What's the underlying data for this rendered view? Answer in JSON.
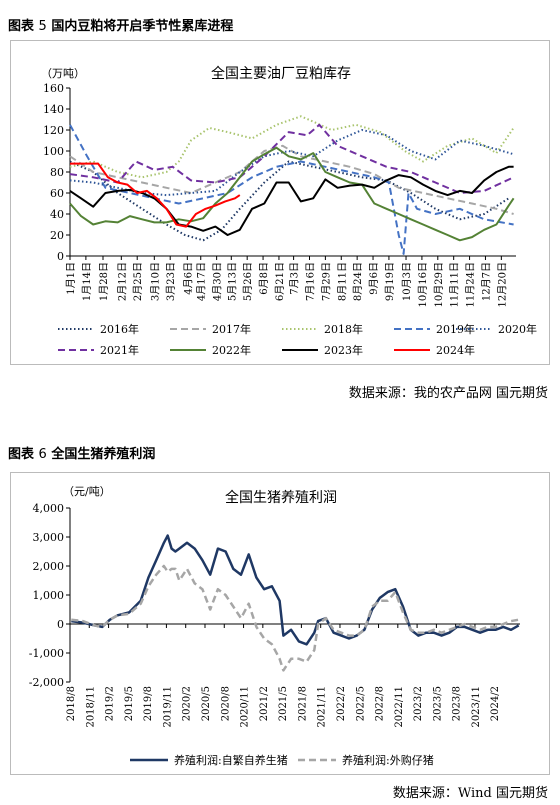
{
  "figure5": {
    "label": "图表",
    "number": "5",
    "caption": "国内豆粕将开启季节性累库进程",
    "source": "数据来源：我的农产品网 国元期货",
    "chart_data": {
      "type": "line",
      "title": "全国主要油厂豆粕库存",
      "ylabel": "（万吨）",
      "ylim": [
        0,
        160
      ],
      "yticks": [
        0,
        20,
        40,
        60,
        80,
        100,
        120,
        140,
        160
      ],
      "xlim": [
        1,
        366
      ],
      "xticks": [
        {
          "day": 1,
          "label": "1月1日"
        },
        {
          "day": 14,
          "label": "1月14日"
        },
        {
          "day": 28,
          "label": "1月28日"
        },
        {
          "day": 43,
          "label": "2月12日"
        },
        {
          "day": 56,
          "label": "2月25日"
        },
        {
          "day": 70,
          "label": "3月10日"
        },
        {
          "day": 83,
          "label": "3月23日"
        },
        {
          "day": 97,
          "label": "4月6日"
        },
        {
          "day": 108,
          "label": "4月17日"
        },
        {
          "day": 121,
          "label": "4月30日"
        },
        {
          "day": 133,
          "label": "5月13日"
        },
        {
          "day": 146,
          "label": "5月26日"
        },
        {
          "day": 159,
          "label": "6月8日"
        },
        {
          "day": 172,
          "label": "6月21日"
        },
        {
          "day": 184,
          "label": "7月3日"
        },
        {
          "day": 197,
          "label": "7月16日"
        },
        {
          "day": 210,
          "label": "7月29日"
        },
        {
          "day": 223,
          "label": "8月11日"
        },
        {
          "day": 236,
          "label": "8月24日"
        },
        {
          "day": 249,
          "label": "9月6日"
        },
        {
          "day": 262,
          "label": "9月19日"
        },
        {
          "day": 276,
          "label": "10月3日"
        },
        {
          "day": 289,
          "label": "10月16日"
        },
        {
          "day": 302,
          "label": "10月29日"
        },
        {
          "day": 315,
          "label": "11月11日"
        },
        {
          "day": 328,
          "label": "11月24日"
        },
        {
          "day": 341,
          "label": "12月7日"
        },
        {
          "day": 354,
          "label": "12月20日"
        }
      ],
      "legend_position": "bottom",
      "series": [
        {
          "name": "2016年",
          "color": "#1f3864",
          "dash": "1.5,2.5",
          "width": 2,
          "x": [
            1,
            20,
            40,
            60,
            80,
            95,
            110,
            125,
            140,
            160,
            180,
            200,
            220,
            240,
            260,
            280,
            300,
            320,
            340,
            360
          ],
          "y": [
            90,
            80,
            60,
            45,
            30,
            20,
            15,
            25,
            45,
            70,
            90,
            85,
            80,
            75,
            72,
            60,
            45,
            35,
            40,
            55
          ]
        },
        {
          "name": "2017年",
          "color": "#a6a6a6",
          "dash": "7,4",
          "width": 2,
          "x": [
            1,
            20,
            40,
            60,
            80,
            100,
            120,
            140,
            160,
            175,
            190,
            210,
            230,
            250,
            270,
            290,
            310,
            330,
            350,
            364
          ],
          "y": [
            95,
            80,
            75,
            70,
            65,
            60,
            70,
            80,
            100,
            105,
            95,
            90,
            85,
            78,
            65,
            60,
            55,
            50,
            45,
            40
          ]
        },
        {
          "name": "2018年",
          "color": "#a9c46e",
          "dash": "1.5,2.5",
          "width": 2,
          "x": [
            1,
            20,
            40,
            60,
            80,
            90,
            100,
            115,
            130,
            150,
            170,
            190,
            200,
            215,
            235,
            255,
            275,
            290,
            310,
            330,
            350,
            364
          ],
          "y": [
            85,
            90,
            80,
            75,
            80,
            90,
            110,
            122,
            118,
            112,
            125,
            133,
            128,
            120,
            125,
            118,
            100,
            90,
            105,
            112,
            98,
            122
          ]
        },
        {
          "name": "2019年",
          "color": "#4472c4",
          "dash": "7,4",
          "width": 2,
          "x": [
            1,
            15,
            30,
            50,
            70,
            90,
            110,
            130,
            150,
            170,
            190,
            210,
            230,
            250,
            262,
            270,
            274,
            278,
            285,
            300,
            320,
            340,
            364
          ],
          "y": [
            125,
            95,
            65,
            60,
            55,
            50,
            55,
            60,
            75,
            85,
            90,
            85,
            80,
            75,
            70,
            20,
            2,
            60,
            45,
            40,
            45,
            35,
            30
          ]
        },
        {
          "name": "2020年",
          "color": "#2e5597",
          "dash": "1.5,2.5",
          "width": 2,
          "x": [
            1,
            20,
            40,
            60,
            80,
            100,
            120,
            140,
            160,
            180,
            200,
            220,
            240,
            260,
            280,
            300,
            320,
            340,
            364
          ],
          "y": [
            72,
            70,
            65,
            60,
            58,
            60,
            62,
            80,
            95,
            100,
            95,
            110,
            120,
            115,
            100,
            92,
            110,
            105,
            97
          ]
        },
        {
          "name": "2021年",
          "color": "#7030a0",
          "dash": "7,4",
          "width": 2,
          "x": [
            1,
            20,
            40,
            55,
            70,
            85,
            100,
            120,
            140,
            160,
            180,
            195,
            205,
            220,
            240,
            260,
            280,
            300,
            320,
            340,
            364
          ],
          "y": [
            78,
            75,
            70,
            90,
            82,
            85,
            72,
            70,
            75,
            95,
            118,
            115,
            125,
            105,
            95,
            85,
            80,
            70,
            60,
            62,
            75
          ]
        },
        {
          "name": "2022年",
          "color": "#548235",
          "dash": "",
          "width": 2,
          "x": [
            1,
            10,
            20,
            30,
            40,
            50,
            60,
            70,
            80,
            90,
            100,
            110,
            120,
            130,
            140,
            150,
            160,
            170,
            180,
            190,
            200,
            210,
            220,
            230,
            240,
            250,
            260,
            270,
            280,
            290,
            300,
            310,
            320,
            330,
            340,
            350,
            360,
            364
          ],
          "y": [
            50,
            38,
            30,
            33,
            32,
            38,
            35,
            32,
            32,
            35,
            33,
            36,
            50,
            60,
            75,
            90,
            97,
            103,
            95,
            92,
            98,
            80,
            75,
            70,
            68,
            50,
            45,
            40,
            35,
            30,
            25,
            20,
            15,
            18,
            25,
            30,
            48,
            55
          ]
        },
        {
          "name": "2023年",
          "color": "#000000",
          "dash": "",
          "width": 2,
          "x": [
            1,
            10,
            20,
            30,
            40,
            50,
            60,
            70,
            80,
            90,
            100,
            110,
            120,
            130,
            140,
            150,
            160,
            170,
            180,
            190,
            200,
            210,
            220,
            230,
            240,
            250,
            260,
            270,
            280,
            290,
            300,
            310,
            320,
            330,
            340,
            350,
            360,
            364
          ],
          "y": [
            62,
            55,
            47,
            60,
            62,
            63,
            60,
            55,
            45,
            30,
            28,
            24,
            28,
            20,
            25,
            45,
            50,
            70,
            70,
            52,
            55,
            73,
            65,
            67,
            68,
            65,
            72,
            77,
            75,
            68,
            62,
            58,
            62,
            60,
            72,
            80,
            85,
            85
          ]
        },
        {
          "name": "2024年",
          "color": "#ff0000",
          "dash": "",
          "width": 2,
          "x": [
            1,
            8,
            16,
            24,
            32,
            40,
            48,
            56,
            64,
            72,
            80,
            88,
            96,
            104,
            112,
            120,
            128,
            136,
            140
          ],
          "y": [
            88,
            88,
            88,
            88,
            75,
            70,
            68,
            60,
            62,
            55,
            45,
            30,
            28,
            40,
            45,
            48,
            52,
            55,
            58
          ]
        }
      ]
    }
  },
  "figure6": {
    "label": "图表",
    "number": "6",
    "caption": "全国生猪养殖利润",
    "source": "数据来源：Wind 国元期货",
    "chart_data": {
      "type": "line",
      "title": "全国生猪养殖利润",
      "ylabel": "（元/吨）",
      "ylim": [
        -2000,
        4000
      ],
      "yticks": [
        -2000,
        -1000,
        0,
        1000,
        2000,
        3000,
        4000
      ],
      "xlim": [
        2018.583,
        2024.417
      ],
      "xticks": [
        {
          "x": 2018.583,
          "label": "2018/8"
        },
        {
          "x": 2018.833,
          "label": "2018/11"
        },
        {
          "x": 2019.083,
          "label": "2019/2"
        },
        {
          "x": 2019.333,
          "label": "2019/5"
        },
        {
          "x": 2019.583,
          "label": "2019/8"
        },
        {
          "x": 2019.833,
          "label": "2019/11"
        },
        {
          "x": 2020.083,
          "label": "2020/2"
        },
        {
          "x": 2020.333,
          "label": "2020/5"
        },
        {
          "x": 2020.583,
          "label": "2020/8"
        },
        {
          "x": 2020.833,
          "label": "2020/11"
        },
        {
          "x": 2021.083,
          "label": "2021/2"
        },
        {
          "x": 2021.333,
          "label": "2021/5"
        },
        {
          "x": 2021.583,
          "label": "2021/8"
        },
        {
          "x": 2021.833,
          "label": "2021/11"
        },
        {
          "x": 2022.083,
          "label": "2022/2"
        },
        {
          "x": 2022.333,
          "label": "2022/5"
        },
        {
          "x": 2022.583,
          "label": "2022/8"
        },
        {
          "x": 2022.833,
          "label": "2022/11"
        },
        {
          "x": 2023.083,
          "label": "2023/2"
        },
        {
          "x": 2023.333,
          "label": "2023/5"
        },
        {
          "x": 2023.583,
          "label": "2023/8"
        },
        {
          "x": 2023.833,
          "label": "2023/11"
        },
        {
          "x": 2024.083,
          "label": "2024/2"
        }
      ],
      "legend_position": "bottom",
      "series": [
        {
          "name": "养殖利润:自繁自养生猪",
          "color": "#1f3864",
          "dash": "",
          "width": 2.5,
          "x": [
            2018.6,
            2018.75,
            2018.9,
            2019.0,
            2019.1,
            2019.2,
            2019.35,
            2019.5,
            2019.6,
            2019.7,
            2019.8,
            2019.85,
            2019.9,
            2019.95,
            2020.0,
            2020.1,
            2020.2,
            2020.3,
            2020.4,
            2020.5,
            2020.6,
            2020.7,
            2020.8,
            2020.9,
            2021.0,
            2021.1,
            2021.2,
            2021.3,
            2021.35,
            2021.45,
            2021.55,
            2021.65,
            2021.75,
            2021.8,
            2021.9,
            2022.0,
            2022.1,
            2022.2,
            2022.3,
            2022.4,
            2022.5,
            2022.6,
            2022.7,
            2022.8,
            2022.9,
            2023.0,
            2023.1,
            2023.2,
            2023.3,
            2023.4,
            2023.5,
            2023.6,
            2023.7,
            2023.8,
            2023.9,
            2024.0,
            2024.1,
            2024.2,
            2024.3,
            2024.4
          ],
          "y": [
            100,
            50,
            -50,
            -100,
            150,
            300,
            400,
            800,
            1600,
            2200,
            2800,
            3050,
            2600,
            2500,
            2600,
            2800,
            2600,
            2200,
            1700,
            2600,
            2500,
            1900,
            1700,
            2400,
            1600,
            1200,
            1300,
            800,
            -400,
            -200,
            -600,
            -700,
            -300,
            100,
            200,
            -300,
            -400,
            -500,
            -400,
            -200,
            500,
            900,
            1100,
            1200,
            600,
            -200,
            -400,
            -300,
            -300,
            -400,
            -300,
            -100,
            -100,
            -200,
            -300,
            -200,
            -200,
            -100,
            -200,
            -50
          ]
        },
        {
          "name": "养殖利润:外购仔猪",
          "color": "#a6a6a6",
          "dash": "7,4",
          "width": 2.5,
          "x": [
            2018.6,
            2018.75,
            2018.9,
            2019.0,
            2019.1,
            2019.2,
            2019.35,
            2019.5,
            2019.6,
            2019.7,
            2019.8,
            2019.85,
            2019.9,
            2019.95,
            2020.0,
            2020.1,
            2020.2,
            2020.3,
            2020.4,
            2020.5,
            2020.6,
            2020.7,
            2020.8,
            2020.9,
            2021.0,
            2021.1,
            2021.2,
            2021.3,
            2021.35,
            2021.45,
            2021.55,
            2021.65,
            2021.75,
            2021.8,
            2021.9,
            2022.0,
            2022.1,
            2022.2,
            2022.3,
            2022.4,
            2022.5,
            2022.6,
            2022.7,
            2022.8,
            2022.9,
            2023.0,
            2023.1,
            2023.2,
            2023.3,
            2023.4,
            2023.5,
            2023.6,
            2023.7,
            2023.8,
            2023.9,
            2024.0,
            2024.1,
            2024.2,
            2024.3,
            2024.4
          ],
          "y": [
            150,
            100,
            -50,
            -100,
            150,
            300,
            350,
            700,
            1300,
            1700,
            2000,
            1800,
            1900,
            1900,
            1500,
            1900,
            1400,
            1200,
            500,
            1200,
            1000,
            600,
            200,
            700,
            -100,
            -500,
            -700,
            -1200,
            -1600,
            -1200,
            -1200,
            -1300,
            -900,
            0,
            200,
            -200,
            -300,
            -400,
            -400,
            -200,
            600,
            800,
            800,
            1100,
            400,
            -200,
            -300,
            -300,
            -200,
            -300,
            -200,
            -100,
            0,
            -100,
            -200,
            -100,
            -100,
            0,
            100,
            150
          ]
        }
      ]
    }
  }
}
